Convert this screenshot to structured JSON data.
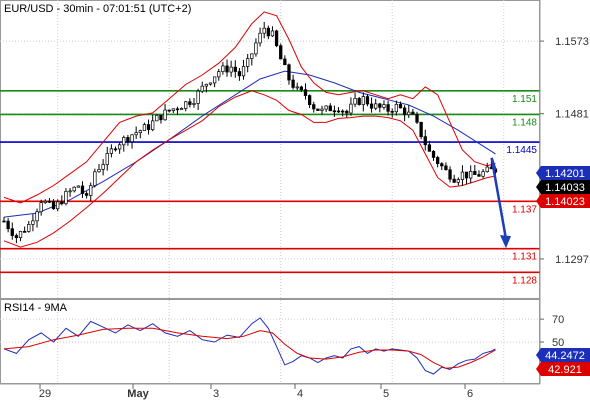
{
  "header": {
    "title": "EUR/USD - 30min - 07:01:51 (UTC+2)"
  },
  "colors": {
    "support": "#dd0000",
    "resistance": "#1a8a1a",
    "pivot": "#0000cc",
    "bollinger": "#dd0000",
    "ma": "#1c2fb8",
    "rsi": "#1c2fb8",
    "rsi_ma": "#dd0000",
    "candle_up": "#ffffff",
    "candle_down": "#000000",
    "arrow": "#1c3fb8",
    "grid": "#cccccc"
  },
  "chart_data": [
    {
      "type": "line",
      "title": "EUR/USD - 30min - 07:01:51 (UTC+2)",
      "instrument": "EUR/USD",
      "timeframe": "30min",
      "series_style": "candlestick",
      "x_ticks": [
        "29",
        "May",
        "3",
        "4",
        "5",
        "6"
      ],
      "y_ticks": [
        1.1297,
        1.1481,
        1.1573
      ],
      "ylim": [
        1.125,
        1.162
      ],
      "grid": true,
      "levels": [
        {
          "label": "1.151",
          "value": 1.151,
          "kind": "resistance"
        },
        {
          "label": "1.148",
          "value": 1.148,
          "kind": "resistance"
        },
        {
          "label": "1.1445",
          "value": 1.1445,
          "kind": "pivot"
        },
        {
          "label": "1.137",
          "value": 1.137,
          "kind": "support"
        },
        {
          "label": "1.131",
          "value": 1.131,
          "kind": "support"
        },
        {
          "label": "1.128",
          "value": 1.128,
          "kind": "support"
        }
      ],
      "badges": [
        {
          "label": "1.14201",
          "value": 1.14201,
          "color": "#1c2fb8"
        },
        {
          "label": "1.14033",
          "value": 1.14033,
          "color": "#000000"
        },
        {
          "label": "1.14023",
          "value": 1.14023,
          "color": "#dd0000"
        }
      ],
      "price_path": [
        {
          "x": 0,
          "y": 1.1345
        },
        {
          "x": 3,
          "y": 1.1325
        },
        {
          "x": 6,
          "y": 1.134
        },
        {
          "x": 9,
          "y": 1.1372
        },
        {
          "x": 12,
          "y": 1.136
        },
        {
          "x": 15,
          "y": 1.1378
        },
        {
          "x": 18,
          "y": 1.139
        },
        {
          "x": 20,
          "y": 1.1372
        },
        {
          "x": 22,
          "y": 1.1408
        },
        {
          "x": 25,
          "y": 1.1425
        },
        {
          "x": 27,
          "y": 1.1442
        },
        {
          "x": 29,
          "y": 1.1448
        },
        {
          "x": 31,
          "y": 1.1455
        },
        {
          "x": 33,
          "y": 1.146
        },
        {
          "x": 35,
          "y": 1.1465
        },
        {
          "x": 37,
          "y": 1.1475
        },
        {
          "x": 40,
          "y": 1.1485
        },
        {
          "x": 43,
          "y": 1.1492
        },
        {
          "x": 46,
          "y": 1.15
        },
        {
          "x": 49,
          "y": 1.152
        },
        {
          "x": 52,
          "y": 1.1535
        },
        {
          "x": 55,
          "y": 1.154
        },
        {
          "x": 57,
          "y": 1.153
        },
        {
          "x": 59,
          "y": 1.1545
        },
        {
          "x": 61,
          "y": 1.157
        },
        {
          "x": 63,
          "y": 1.159
        },
        {
          "x": 65,
          "y": 1.158
        },
        {
          "x": 67,
          "y": 1.155
        },
        {
          "x": 69,
          "y": 1.1525
        },
        {
          "x": 71,
          "y": 1.151
        },
        {
          "x": 73,
          "y": 1.1505
        },
        {
          "x": 75,
          "y": 1.149
        },
        {
          "x": 77,
          "y": 1.1484
        },
        {
          "x": 79,
          "y": 1.1488
        },
        {
          "x": 81,
          "y": 1.149
        },
        {
          "x": 83,
          "y": 1.1482
        },
        {
          "x": 85,
          "y": 1.1495
        },
        {
          "x": 87,
          "y": 1.15
        },
        {
          "x": 89,
          "y": 1.1492
        },
        {
          "x": 91,
          "y": 1.1488
        },
        {
          "x": 93,
          "y": 1.1486
        },
        {
          "x": 95,
          "y": 1.149
        },
        {
          "x": 97,
          "y": 1.1484
        },
        {
          "x": 99,
          "y": 1.1476
        },
        {
          "x": 101,
          "y": 1.1455
        },
        {
          "x": 103,
          "y": 1.1432
        },
        {
          "x": 105,
          "y": 1.142
        },
        {
          "x": 107,
          "y": 1.1408
        },
        {
          "x": 109,
          "y": 1.14
        },
        {
          "x": 111,
          "y": 1.1405
        },
        {
          "x": 113,
          "y": 1.1402
        },
        {
          "x": 115,
          "y": 1.1404
        },
        {
          "x": 117,
          "y": 1.1408
        },
        {
          "x": 119,
          "y": 1.141
        }
      ],
      "bollinger_upper": [
        {
          "x": 0,
          "y": 1.1375
        },
        {
          "x": 4,
          "y": 1.1368
        },
        {
          "x": 8,
          "y": 1.1378
        },
        {
          "x": 12,
          "y": 1.139
        },
        {
          "x": 16,
          "y": 1.1405
        },
        {
          "x": 20,
          "y": 1.142
        },
        {
          "x": 24,
          "y": 1.1445
        },
        {
          "x": 28,
          "y": 1.147
        },
        {
          "x": 32,
          "y": 1.1478
        },
        {
          "x": 36,
          "y": 1.1482
        },
        {
          "x": 40,
          "y": 1.15
        },
        {
          "x": 44,
          "y": 1.1518
        },
        {
          "x": 48,
          "y": 1.153
        },
        {
          "x": 52,
          "y": 1.1545
        },
        {
          "x": 56,
          "y": 1.1565
        },
        {
          "x": 60,
          "y": 1.1595
        },
        {
          "x": 63,
          "y": 1.161
        },
        {
          "x": 66,
          "y": 1.1605
        },
        {
          "x": 69,
          "y": 1.1575
        },
        {
          "x": 72,
          "y": 1.154
        },
        {
          "x": 75,
          "y": 1.152
        },
        {
          "x": 78,
          "y": 1.1508
        },
        {
          "x": 81,
          "y": 1.1505
        },
        {
          "x": 84,
          "y": 1.1508
        },
        {
          "x": 87,
          "y": 1.151
        },
        {
          "x": 90,
          "y": 1.1505
        },
        {
          "x": 93,
          "y": 1.15
        },
        {
          "x": 96,
          "y": 1.1505
        },
        {
          "x": 99,
          "y": 1.15
        },
        {
          "x": 102,
          "y": 1.1515
        },
        {
          "x": 105,
          "y": 1.1505
        },
        {
          "x": 108,
          "y": 1.147
        },
        {
          "x": 111,
          "y": 1.1435
        },
        {
          "x": 114,
          "y": 1.142
        },
        {
          "x": 117,
          "y": 1.1415
        },
        {
          "x": 119,
          "y": 1.1418
        }
      ],
      "bollinger_lower": [
        {
          "x": 0,
          "y": 1.132
        },
        {
          "x": 4,
          "y": 1.1312
        },
        {
          "x": 8,
          "y": 1.1318
        },
        {
          "x": 12,
          "y": 1.133
        },
        {
          "x": 16,
          "y": 1.1345
        },
        {
          "x": 20,
          "y": 1.1362
        },
        {
          "x": 24,
          "y": 1.138
        },
        {
          "x": 28,
          "y": 1.14
        },
        {
          "x": 32,
          "y": 1.142
        },
        {
          "x": 36,
          "y": 1.1435
        },
        {
          "x": 40,
          "y": 1.1448
        },
        {
          "x": 44,
          "y": 1.146
        },
        {
          "x": 48,
          "y": 1.1472
        },
        {
          "x": 52,
          "y": 1.149
        },
        {
          "x": 56,
          "y": 1.1502
        },
        {
          "x": 60,
          "y": 1.151
        },
        {
          "x": 63,
          "y": 1.1505
        },
        {
          "x": 66,
          "y": 1.1498
        },
        {
          "x": 69,
          "y": 1.1485
        },
        {
          "x": 72,
          "y": 1.148
        },
        {
          "x": 75,
          "y": 1.147
        },
        {
          "x": 78,
          "y": 1.147
        },
        {
          "x": 81,
          "y": 1.1475
        },
        {
          "x": 84,
          "y": 1.1476
        },
        {
          "x": 87,
          "y": 1.1478
        },
        {
          "x": 90,
          "y": 1.1478
        },
        {
          "x": 93,
          "y": 1.1476
        },
        {
          "x": 96,
          "y": 1.1472
        },
        {
          "x": 99,
          "y": 1.146
        },
        {
          "x": 102,
          "y": 1.143
        },
        {
          "x": 105,
          "y": 1.14
        },
        {
          "x": 108,
          "y": 1.1388
        },
        {
          "x": 111,
          "y": 1.139
        },
        {
          "x": 114,
          "y": 1.1395
        },
        {
          "x": 117,
          "y": 1.14
        },
        {
          "x": 119,
          "y": 1.1402
        }
      ],
      "moving_average": [
        {
          "x": 0,
          "y": 1.135
        },
        {
          "x": 8,
          "y": 1.1355
        },
        {
          "x": 16,
          "y": 1.1372
        },
        {
          "x": 24,
          "y": 1.1395
        },
        {
          "x": 32,
          "y": 1.142
        },
        {
          "x": 40,
          "y": 1.1448
        },
        {
          "x": 48,
          "y": 1.1478
        },
        {
          "x": 56,
          "y": 1.1505
        },
        {
          "x": 62,
          "y": 1.1525
        },
        {
          "x": 68,
          "y": 1.1535
        },
        {
          "x": 74,
          "y": 1.153
        },
        {
          "x": 80,
          "y": 1.152
        },
        {
          "x": 86,
          "y": 1.1508
        },
        {
          "x": 92,
          "y": 1.15
        },
        {
          "x": 98,
          "y": 1.1492
        },
        {
          "x": 104,
          "y": 1.1478
        },
        {
          "x": 110,
          "y": 1.146
        },
        {
          "x": 116,
          "y": 1.144
        },
        {
          "x": 119,
          "y": 1.143
        }
      ],
      "forecast": {
        "from": {
          "x": 120,
          "y": 1.1425
        },
        "to": {
          "x": 123,
          "y": 1.1312
        }
      }
    },
    {
      "type": "line",
      "title": "RSI14 - 9MA",
      "y_ticks": [
        50,
        70
      ],
      "ylim": [
        15,
        85
      ],
      "badges": [
        {
          "label": "44.2472",
          "value": 44.2472,
          "color": "#1c2fb8"
        },
        {
          "label": "42.921",
          "value": 42.921,
          "color": "#dd0000"
        }
      ],
      "series": [
        {
          "name": "RSI14",
          "values": [
            {
              "x": 0,
              "y": 44
            },
            {
              "x": 3,
              "y": 40
            },
            {
              "x": 6,
              "y": 52
            },
            {
              "x": 9,
              "y": 58
            },
            {
              "x": 12,
              "y": 50
            },
            {
              "x": 15,
              "y": 62
            },
            {
              "x": 18,
              "y": 55
            },
            {
              "x": 21,
              "y": 68
            },
            {
              "x": 24,
              "y": 63
            },
            {
              "x": 27,
              "y": 58
            },
            {
              "x": 30,
              "y": 65
            },
            {
              "x": 33,
              "y": 60
            },
            {
              "x": 36,
              "y": 66
            },
            {
              "x": 39,
              "y": 58
            },
            {
              "x": 42,
              "y": 55
            },
            {
              "x": 45,
              "y": 60
            },
            {
              "x": 48,
              "y": 52
            },
            {
              "x": 51,
              "y": 50
            },
            {
              "x": 54,
              "y": 56
            },
            {
              "x": 57,
              "y": 54
            },
            {
              "x": 60,
              "y": 66
            },
            {
              "x": 62,
              "y": 71
            },
            {
              "x": 64,
              "y": 62
            },
            {
              "x": 66,
              "y": 46
            },
            {
              "x": 68,
              "y": 30
            },
            {
              "x": 70,
              "y": 33
            },
            {
              "x": 72,
              "y": 38
            },
            {
              "x": 74,
              "y": 36
            },
            {
              "x": 76,
              "y": 32
            },
            {
              "x": 78,
              "y": 36
            },
            {
              "x": 80,
              "y": 38
            },
            {
              "x": 82,
              "y": 36
            },
            {
              "x": 84,
              "y": 44
            },
            {
              "x": 86,
              "y": 46
            },
            {
              "x": 88,
              "y": 40
            },
            {
              "x": 90,
              "y": 44
            },
            {
              "x": 92,
              "y": 42
            },
            {
              "x": 94,
              "y": 44
            },
            {
              "x": 96,
              "y": 43
            },
            {
              "x": 98,
              "y": 42
            },
            {
              "x": 100,
              "y": 36
            },
            {
              "x": 102,
              "y": 25
            },
            {
              "x": 104,
              "y": 22
            },
            {
              "x": 106,
              "y": 28
            },
            {
              "x": 108,
              "y": 26
            },
            {
              "x": 110,
              "y": 31
            },
            {
              "x": 112,
              "y": 34
            },
            {
              "x": 114,
              "y": 35
            },
            {
              "x": 116,
              "y": 40
            },
            {
              "x": 118,
              "y": 42
            },
            {
              "x": 119,
              "y": 44
            }
          ]
        },
        {
          "name": "9MA",
          "values": [
            {
              "x": 0,
              "y": 44
            },
            {
              "x": 6,
              "y": 46
            },
            {
              "x": 12,
              "y": 52
            },
            {
              "x": 18,
              "y": 56
            },
            {
              "x": 24,
              "y": 61
            },
            {
              "x": 30,
              "y": 62
            },
            {
              "x": 36,
              "y": 62
            },
            {
              "x": 42,
              "y": 58
            },
            {
              "x": 48,
              "y": 55
            },
            {
              "x": 54,
              "y": 53
            },
            {
              "x": 58,
              "y": 55
            },
            {
              "x": 62,
              "y": 60
            },
            {
              "x": 65,
              "y": 58
            },
            {
              "x": 68,
              "y": 48
            },
            {
              "x": 71,
              "y": 40
            },
            {
              "x": 74,
              "y": 36
            },
            {
              "x": 78,
              "y": 35
            },
            {
              "x": 82,
              "y": 37
            },
            {
              "x": 86,
              "y": 41
            },
            {
              "x": 90,
              "y": 43
            },
            {
              "x": 94,
              "y": 43
            },
            {
              "x": 98,
              "y": 42
            },
            {
              "x": 101,
              "y": 39
            },
            {
              "x": 104,
              "y": 32
            },
            {
              "x": 107,
              "y": 27
            },
            {
              "x": 110,
              "y": 28
            },
            {
              "x": 113,
              "y": 32
            },
            {
              "x": 116,
              "y": 37
            },
            {
              "x": 119,
              "y": 43
            }
          ]
        }
      ]
    }
  ]
}
